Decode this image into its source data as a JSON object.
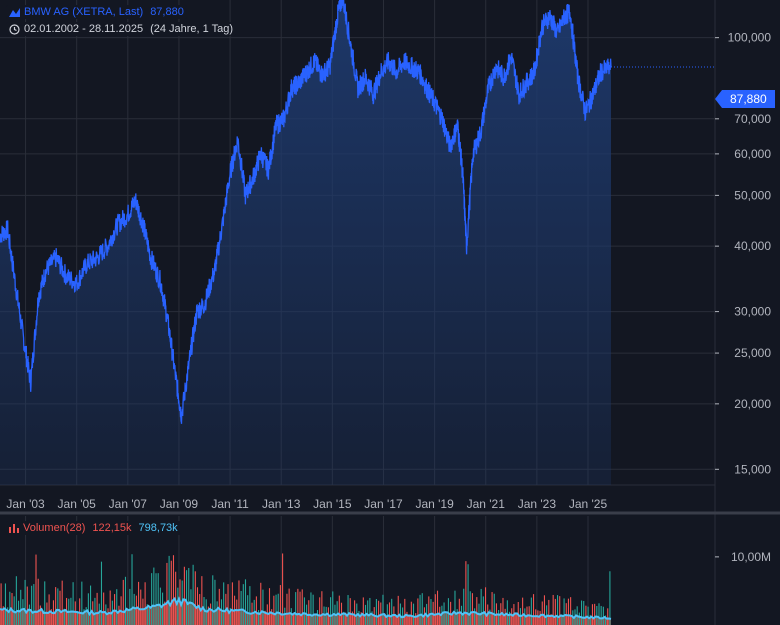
{
  "header": {
    "instrument": "BMW AG (XETRA, Last)",
    "last_value": "87,880",
    "date_range": "02.01.2002 - 28.11.2025",
    "period": "(24 Jahre, 1 Tag)",
    "icons": {
      "chart": "mountain-chart-icon",
      "clock": "clock-icon",
      "volume": "bar-chart-icon"
    }
  },
  "volume_legend": {
    "label": "Volumen(28)",
    "value1": "122,15k",
    "value2": "798,73k"
  },
  "price_badge": "87,880",
  "colors": {
    "background": "#131722",
    "line": "#2962ff",
    "area_top": "#1e3a6e",
    "volume_up": "#26a69a",
    "volume_down": "#ef5350",
    "volume_ma": "#4fc3f7",
    "grid": "#2a2e39"
  },
  "chart_data": [
    {
      "type": "area",
      "scale": "log",
      "y_tick_labels": [
        "100,000",
        "70,000",
        "60,000",
        "50,000",
        "40,000",
        "30,000",
        "25,000",
        "20,000",
        "15,000"
      ],
      "y_ticks": [
        100,
        70,
        60,
        50,
        40,
        30,
        25,
        20,
        15
      ],
      "x_tick_labels": [
        "Jan '03",
        "Jan '05",
        "Jan '07",
        "Jan '09",
        "Jan '11",
        "Jan '13",
        "Jan '15",
        "Jan '17",
        "Jan '19",
        "Jan '21",
        "Jan '23",
        "Jan '25"
      ],
      "x_tick_years": [
        2003,
        2005,
        2007,
        2009,
        2011,
        2013,
        2015,
        2017,
        2019,
        2021,
        2023,
        2025
      ],
      "grid": true,
      "x": [
        2002.0,
        2002.3,
        2002.6,
        2002.9,
        2003.2,
        2003.5,
        2003.8,
        2004.2,
        2004.6,
        2005.0,
        2005.4,
        2005.8,
        2006.2,
        2006.6,
        2007.0,
        2007.3,
        2007.6,
        2007.9,
        2008.3,
        2008.6,
        2008.9,
        2009.1,
        2009.4,
        2009.7,
        2010.0,
        2010.4,
        2010.7,
        2011.0,
        2011.3,
        2011.6,
        2011.9,
        2012.2,
        2012.5,
        2012.8,
        2013.1,
        2013.4,
        2013.7,
        2014.0,
        2014.3,
        2014.6,
        2014.9,
        2015.2,
        2015.4,
        2015.7,
        2016.0,
        2016.3,
        2016.6,
        2016.9,
        2017.2,
        2017.5,
        2017.8,
        2018.1,
        2018.4,
        2018.7,
        2019.0,
        2019.3,
        2019.6,
        2019.9,
        2020.1,
        2020.25,
        2020.5,
        2020.8,
        2021.1,
        2021.4,
        2021.7,
        2022.0,
        2022.3,
        2022.6,
        2022.9,
        2023.2,
        2023.5,
        2023.8,
        2024.1,
        2024.3,
        2024.6,
        2024.9,
        2025.2,
        2025.5,
        2025.9
      ],
      "values": [
        42,
        43,
        34,
        27,
        22,
        32,
        36,
        38,
        35,
        34,
        37,
        38,
        40,
        44,
        46,
        49,
        44,
        38,
        34,
        28,
        22,
        19,
        24,
        30,
        31,
        36,
        44,
        55,
        64,
        50,
        54,
        60,
        56,
        68,
        70,
        80,
        82,
        86,
        90,
        85,
        88,
        110,
        120,
        98,
        80,
        84,
        78,
        86,
        90,
        86,
        90,
        88,
        86,
        80,
        75,
        70,
        62,
        68,
        55,
        40,
        60,
        66,
        80,
        88,
        84,
        92,
        78,
        82,
        86,
        105,
        110,
        102,
        110,
        112,
        84,
        72,
        78,
        86,
        87.88
      ],
      "last": 87.88,
      "ylim": [
        14,
        118
      ]
    },
    {
      "type": "bar",
      "series_name": "Volumen(28)",
      "y_tick_labels": [
        "10,00M"
      ],
      "y_ticks": [
        10
      ],
      "volume_profile_x": [
        2002,
        2004,
        2006,
        2008,
        2009,
        2010,
        2012,
        2014,
        2016,
        2018,
        2020,
        2022,
        2024,
        2025.9
      ],
      "volume_profile_ma": [
        2.2,
        2.0,
        1.8,
        2.6,
        3.6,
        2.3,
        1.9,
        1.6,
        1.5,
        1.3,
        1.8,
        1.5,
        1.3,
        1.0
      ],
      "ylim": [
        0,
        16
      ]
    }
  ]
}
